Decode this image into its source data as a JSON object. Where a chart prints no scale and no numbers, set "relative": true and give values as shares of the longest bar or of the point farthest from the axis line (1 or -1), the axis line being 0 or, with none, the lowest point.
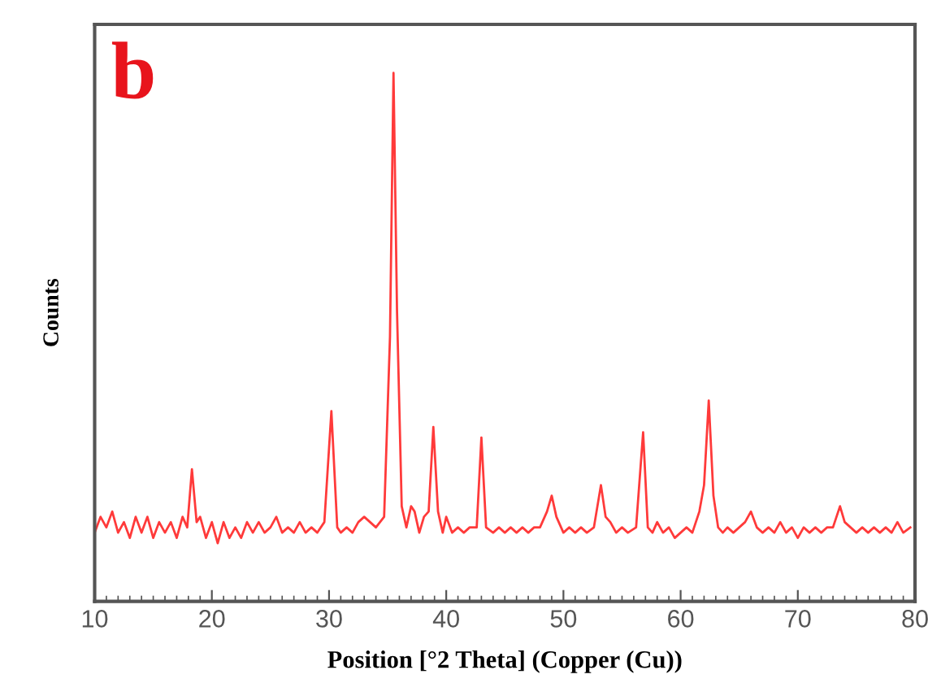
{
  "chart_data": {
    "type": "line",
    "relative": true,
    "xlabel": "Position [°2 Theta] (Copper (Cu))",
    "ylabel": "Counts",
    "annotations": [
      "b"
    ],
    "xlim": [
      10,
      80
    ],
    "xticks": [
      10,
      20,
      30,
      40,
      50,
      60,
      70,
      80
    ],
    "tick_labels": "x",
    "grid": false,
    "marker": "none",
    "line_style": "solid",
    "series": [
      {
        "color": "#ff3a3a",
        "x": [
          10,
          10.5,
          11,
          11.5,
          12,
          12.5,
          13,
          13.5,
          14,
          14.5,
          15,
          15.5,
          16,
          16.5,
          17,
          17.5,
          17.9,
          18.3,
          18.7,
          19,
          19.5,
          20,
          20.5,
          21,
          21.5,
          22,
          22.5,
          23,
          23.5,
          24,
          24.5,
          25,
          25.5,
          26,
          26.5,
          27,
          27.5,
          28,
          28.5,
          29,
          29.6,
          30.2,
          30.7,
          31,
          31.5,
          32,
          32.5,
          33,
          33.5,
          34,
          34.7,
          35.2,
          35.5,
          35.8,
          36.2,
          36.6,
          37,
          37.3,
          37.7,
          38.1,
          38.5,
          38.9,
          39.3,
          39.7,
          40,
          40.5,
          41,
          41.5,
          42,
          42.6,
          43,
          43.4,
          44,
          44.5,
          45,
          45.5,
          46,
          46.5,
          47,
          47.5,
          48,
          48.6,
          49,
          49.4,
          50,
          50.5,
          51,
          51.5,
          52,
          52.6,
          53.2,
          53.6,
          54,
          54.5,
          55,
          55.5,
          56.2,
          56.8,
          57.2,
          57.6,
          58,
          58.5,
          59,
          59.5,
          60,
          60.5,
          61,
          61.6,
          62,
          62.4,
          62.8,
          63.2,
          63.6,
          64,
          64.5,
          65,
          65.5,
          66,
          66.5,
          67,
          67.5,
          68,
          68.5,
          69,
          69.5,
          70,
          70.5,
          71,
          71.5,
          72,
          72.5,
          73,
          73.6,
          74,
          74.5,
          75,
          75.5,
          76,
          76.5,
          77,
          77.5,
          78,
          78.5,
          79,
          79.6
        ],
        "values": [
          0.13,
          0.16,
          0.14,
          0.17,
          0.13,
          0.15,
          0.12,
          0.16,
          0.13,
          0.16,
          0.12,
          0.15,
          0.13,
          0.15,
          0.12,
          0.16,
          0.14,
          0.25,
          0.15,
          0.16,
          0.12,
          0.15,
          0.11,
          0.15,
          0.12,
          0.14,
          0.12,
          0.15,
          0.13,
          0.15,
          0.13,
          0.14,
          0.16,
          0.13,
          0.14,
          0.13,
          0.15,
          0.13,
          0.14,
          0.13,
          0.15,
          0.36,
          0.14,
          0.13,
          0.14,
          0.13,
          0.15,
          0.16,
          0.15,
          0.14,
          0.16,
          0.5,
          1.0,
          0.55,
          0.18,
          0.14,
          0.18,
          0.17,
          0.13,
          0.16,
          0.17,
          0.33,
          0.17,
          0.13,
          0.16,
          0.13,
          0.14,
          0.13,
          0.14,
          0.14,
          0.31,
          0.14,
          0.13,
          0.14,
          0.13,
          0.14,
          0.13,
          0.14,
          0.13,
          0.14,
          0.14,
          0.17,
          0.2,
          0.16,
          0.13,
          0.14,
          0.13,
          0.14,
          0.13,
          0.14,
          0.22,
          0.16,
          0.15,
          0.13,
          0.14,
          0.13,
          0.14,
          0.32,
          0.14,
          0.13,
          0.15,
          0.13,
          0.14,
          0.12,
          0.13,
          0.14,
          0.13,
          0.17,
          0.22,
          0.38,
          0.2,
          0.14,
          0.13,
          0.14,
          0.13,
          0.14,
          0.15,
          0.17,
          0.14,
          0.13,
          0.14,
          0.13,
          0.15,
          0.13,
          0.14,
          0.12,
          0.14,
          0.13,
          0.14,
          0.13,
          0.14,
          0.14,
          0.18,
          0.15,
          0.14,
          0.13,
          0.14,
          0.13,
          0.14,
          0.13,
          0.14,
          0.13,
          0.15,
          0.13,
          0.14
        ]
      }
    ]
  }
}
